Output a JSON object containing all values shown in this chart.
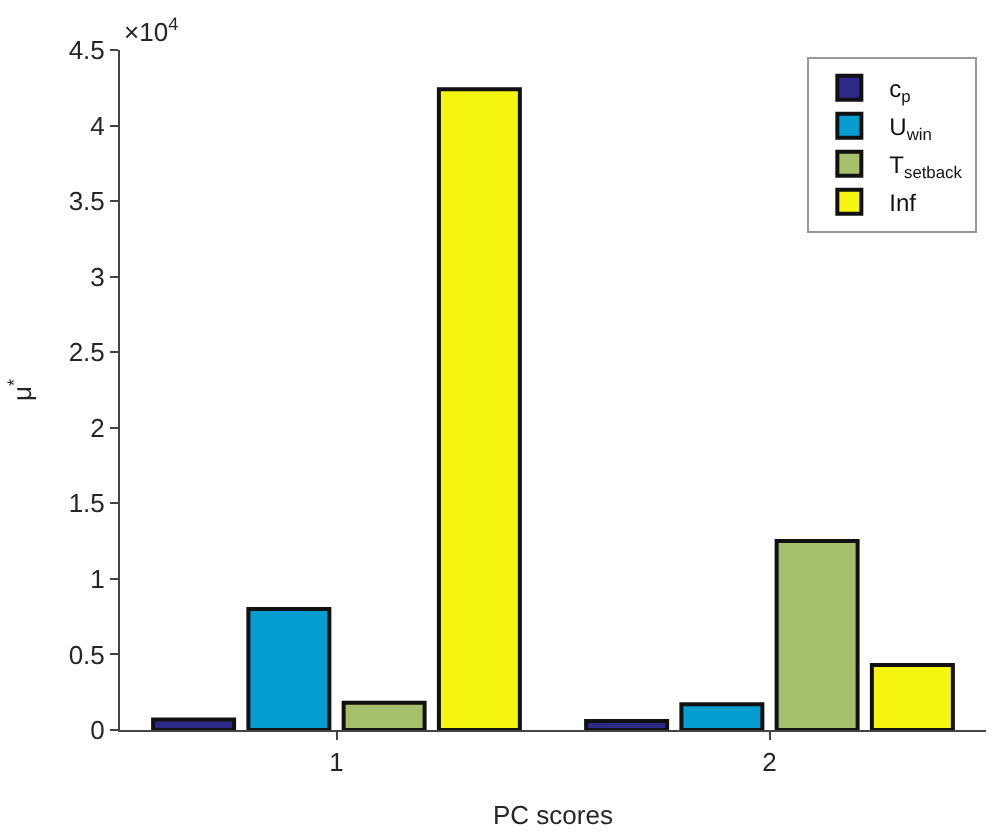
{
  "chart_data": {
    "type": "bar",
    "xlabel": "PC scores",
    "ylabel": "μ$^{*}$",
    "categories": [
      "1",
      "2"
    ],
    "series": [
      {
        "name": "c$_{p}$",
        "color": "#2e2a8a",
        "values": [
          0.07,
          0.06
        ]
      },
      {
        "name": "U$_{win}$",
        "color": "#069dd0",
        "values": [
          0.8,
          0.17
        ]
      },
      {
        "name": "T$_{setback}$",
        "color": "#a5bf6a",
        "values": [
          0.18,
          1.25
        ]
      },
      {
        "name": "Inf",
        "color": "#f5f50f",
        "values": [
          4.24,
          0.43
        ]
      }
    ],
    "ylim": [
      0,
      4.5
    ],
    "yticks": [
      0,
      0.5,
      1,
      1.5,
      2,
      2.5,
      3,
      3.5,
      4,
      4.5
    ],
    "annotations": [
      "×10$^{4}$"
    ],
    "legend": "top right"
  }
}
